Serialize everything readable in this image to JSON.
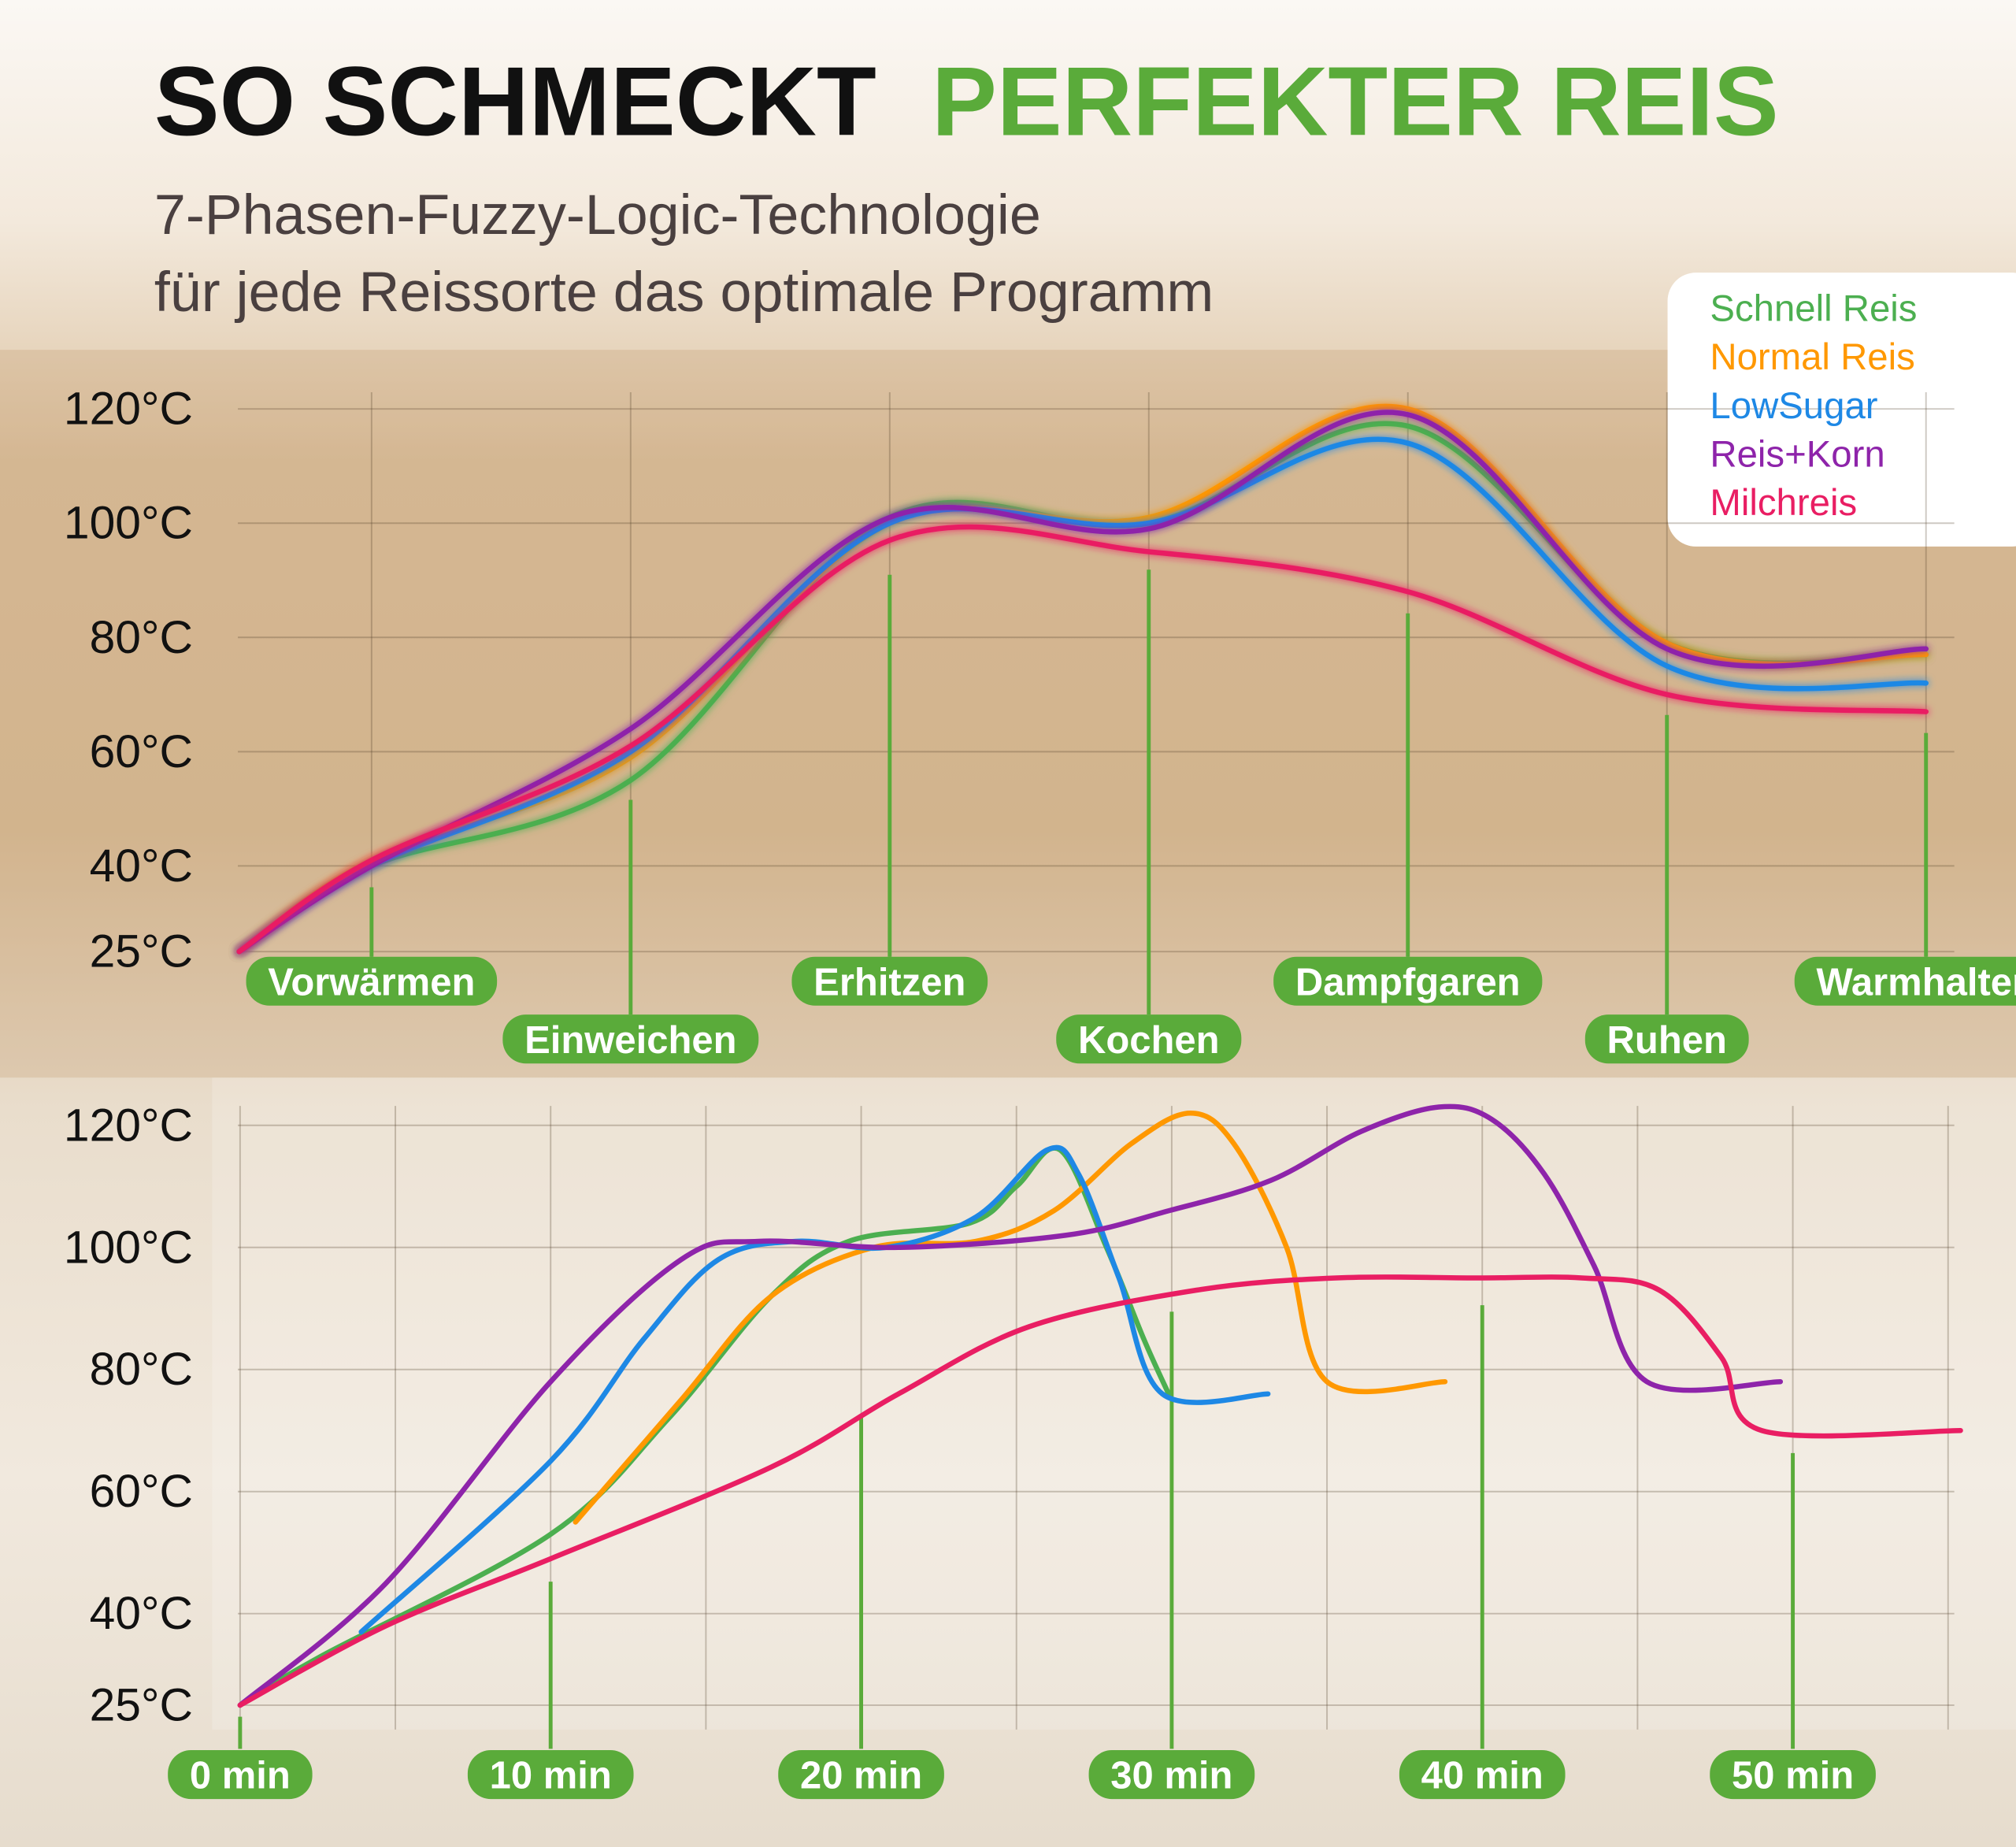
{
  "header": {
    "title": "SO SCHMECKT",
    "title_highlight": "PERFEKTER REIS",
    "subtitle": [
      "7-Phasen-Fuzzy-Logic-Technologie",
      "für jede Reissorte das optimale Programm"
    ]
  },
  "chart_data": [
    {
      "type": "line",
      "categories": [
        null,
        "Vorwärmen",
        "Einweichen",
        "Erhitzen",
        "Kochen",
        "Dampfgaren",
        "Ruhen",
        "Warmhalten"
      ],
      "series": [
        {
          "name": "Schnell Reis",
          "color": "#4caf50",
          "values": [
            25,
            40,
            55,
            101,
            100,
            117,
            79,
            77
          ]
        },
        {
          "name": "Normal Reis",
          "color": "#ff9800",
          "values": [
            25,
            41,
            59,
            100,
            101,
            120,
            79,
            77
          ]
        },
        {
          "name": "LowSugar",
          "color": "#1e88e5",
          "values": [
            25,
            40,
            60,
            100,
            100,
            114,
            75,
            72
          ]
        },
        {
          "name": "Reis+Korn",
          "color": "#8e24aa",
          "values": [
            25,
            40,
            64,
            101,
            99,
            119,
            78,
            78
          ]
        },
        {
          "name": "Milchreis",
          "color": "#e91e63",
          "values": [
            25,
            41,
            61,
            97,
            95,
            88,
            70,
            67
          ]
        }
      ],
      "ylim": [
        20.5,
        126.3
      ],
      "yticks": [
        {
          "value": 25,
          "label": "25°C"
        },
        {
          "value": 40,
          "label": "40°C"
        },
        {
          "value": 60,
          "label": "60°C"
        },
        {
          "value": 80,
          "label": "80°C"
        },
        {
          "value": 100,
          "label": "100°C"
        },
        {
          "value": 120,
          "label": "120°C"
        }
      ],
      "grid": true,
      "legend": "top-right"
    },
    {
      "type": "line",
      "series": [
        {
          "color": "#4caf50",
          "x": [
            0,
            2.6,
            10,
            13.8,
            17.1,
            19.6,
            23.5,
            25,
            26.4,
            27.9,
            29.1,
            29.9
          ],
          "values": [
            25,
            33,
            53,
            72,
            92,
            101,
            104,
            110,
            116,
            100,
            85,
            76
          ]
        },
        {
          "color": "#ff9800",
          "x": [
            10.8,
            14.2,
            17.1,
            20.4,
            23.7,
            26.2,
            28.7,
            30.6,
            32,
            33.7,
            35,
            38.8
          ],
          "values": [
            55,
            75,
            92,
            100,
            101,
            106,
            117,
            122,
            117,
            100,
            78,
            78
          ]
        },
        {
          "color": "#1e88e5",
          "x": [
            3.9,
            10,
            13,
            15.4,
            17.9,
            20.8,
            23.7,
            26,
            27,
            28.3,
            29.7,
            33.1
          ],
          "values": [
            37,
            65,
            85,
            98,
            101,
            100,
            105,
            116,
            112,
            95,
            76,
            76
          ]
        },
        {
          "color": "#8e24aa",
          "x": [
            0,
            4.7,
            10,
            14.2,
            16.7,
            21.2,
            26.6,
            29.9,
            33.2,
            36.1,
            38.6,
            40.3,
            42,
            43.6,
            45.3,
            49.6
          ],
          "values": [
            25,
            45,
            78,
            98,
            101,
            100,
            102,
            106,
            111,
            119,
            123,
            121,
            112,
            97,
            78,
            78
          ]
        },
        {
          "color": "#e91e63",
          "x": [
            0,
            4.7,
            10,
            17.1,
            21.2,
            25.4,
            30.8,
            35.3,
            39.9,
            43.2,
            45.7,
            47.7,
            49,
            55.4
          ],
          "values": [
            25,
            38,
            49,
            64,
            76,
            87,
            93,
            95,
            95,
            95,
            93,
            82,
            70,
            70
          ]
        }
      ],
      "xlim": [
        -0.9,
        55.2
      ],
      "xticks": [
        {
          "value": 0,
          "label": "0 min"
        },
        {
          "value": 10,
          "label": "10 min"
        },
        {
          "value": 20,
          "label": "20 min"
        },
        {
          "value": 30,
          "label": "30 min"
        },
        {
          "value": 40,
          "label": "40 min"
        },
        {
          "value": 50,
          "label": "50 min"
        }
      ],
      "ylim": [
        21,
        127.4
      ],
      "yticks": [
        {
          "value": 25,
          "label": "25°C"
        },
        {
          "value": 40,
          "label": "40°C"
        },
        {
          "value": 60,
          "label": "60°C"
        },
        {
          "value": 80,
          "label": "80°C"
        },
        {
          "value": 100,
          "label": "100°C"
        },
        {
          "value": 120,
          "label": "120°C"
        }
      ],
      "grid": true
    }
  ]
}
